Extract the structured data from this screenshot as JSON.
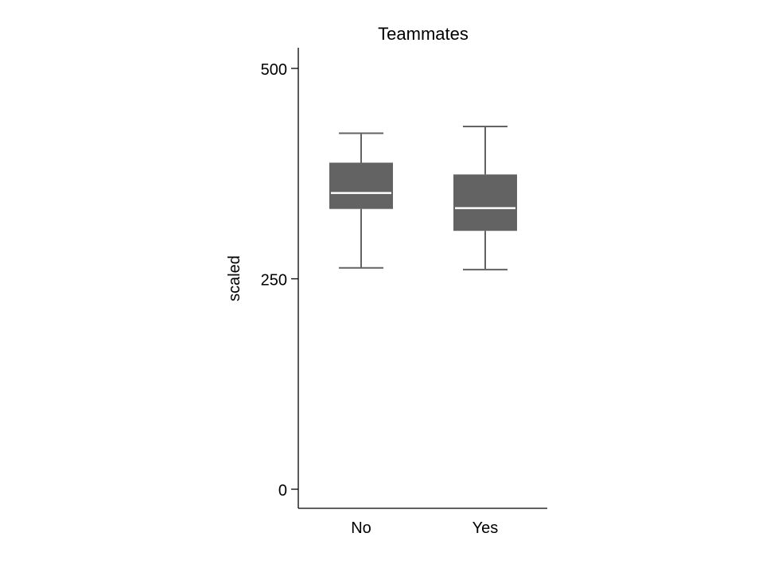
{
  "chart_data": {
    "type": "box",
    "title": "Teammates",
    "xlabel": "",
    "ylabel": "scaled",
    "ylim": [
      0,
      500
    ],
    "yticks": [
      0,
      250,
      500
    ],
    "categories": [
      "No",
      "Yes"
    ],
    "boxes": [
      {
        "category": "No",
        "whisker_low": 263,
        "q1": 333,
        "median": 352,
        "q3": 388,
        "whisker_high": 423
      },
      {
        "category": "Yes",
        "whisker_low": 261,
        "q1": 307,
        "median": 334,
        "q3": 374,
        "whisker_high": 431
      }
    ],
    "grid": false,
    "legend": "none"
  },
  "colors": {
    "box_fill": "#636363",
    "whisker": "#636363",
    "median": "#ffffff",
    "axis": "#000000"
  }
}
